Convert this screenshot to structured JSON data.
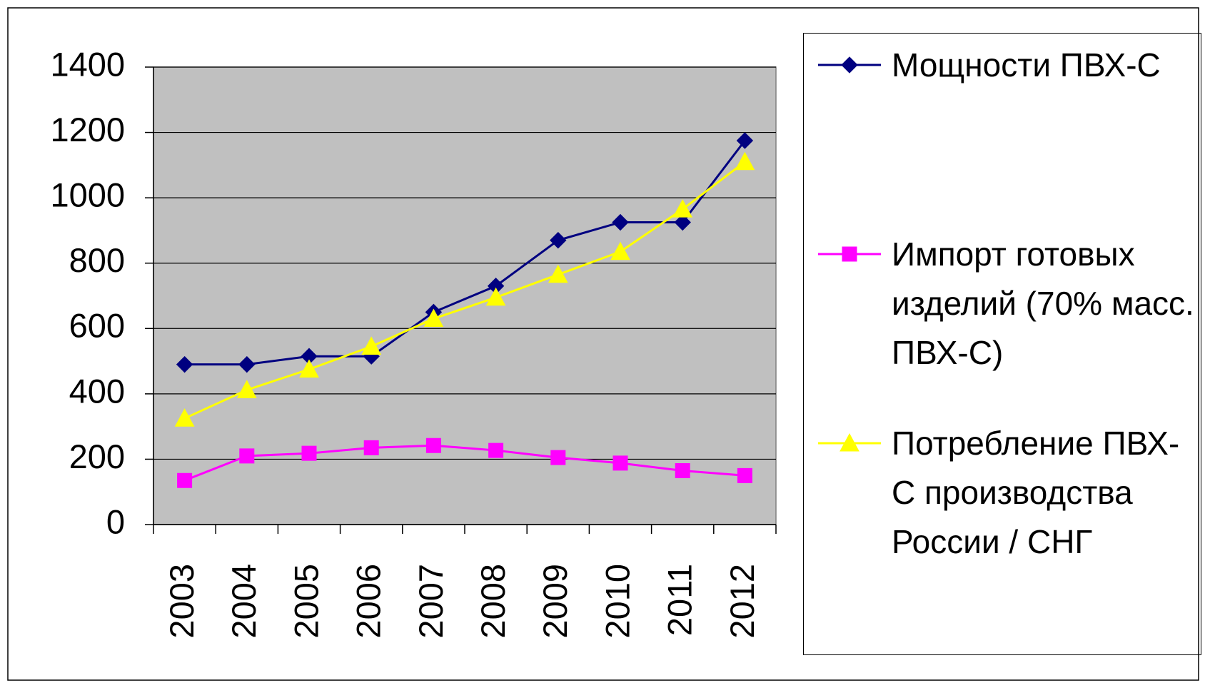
{
  "chart_data": {
    "type": "line",
    "categories": [
      "2003",
      "2004",
      "2005",
      "2006",
      "2007",
      "2008",
      "2009",
      "2010",
      "2011",
      "2012"
    ],
    "series": [
      {
        "name": "Мощности ПВХ-С",
        "color": "#000080",
        "marker": "diamond",
        "values": [
          490,
          490,
          515,
          515,
          650,
          730,
          870,
          925,
          925,
          1175
        ]
      },
      {
        "name": "Импорт готовых изделий (70% масс. ПВХ-С)",
        "color": "#ff00ff",
        "marker": "square",
        "values": [
          135,
          210,
          218,
          235,
          242,
          227,
          205,
          188,
          165,
          150
        ]
      },
      {
        "name": "Потребление ПВХ-С производства России / СНГ",
        "color": "#ffff00",
        "marker": "triangle",
        "values": [
          325,
          412,
          475,
          545,
          630,
          695,
          765,
          835,
          965,
          1110
        ]
      }
    ],
    "ylim": [
      0,
      1400
    ],
    "yticks": [
      0,
      200,
      400,
      600,
      800,
      1000,
      1200,
      1400
    ],
    "grid": true,
    "legend": "right"
  }
}
